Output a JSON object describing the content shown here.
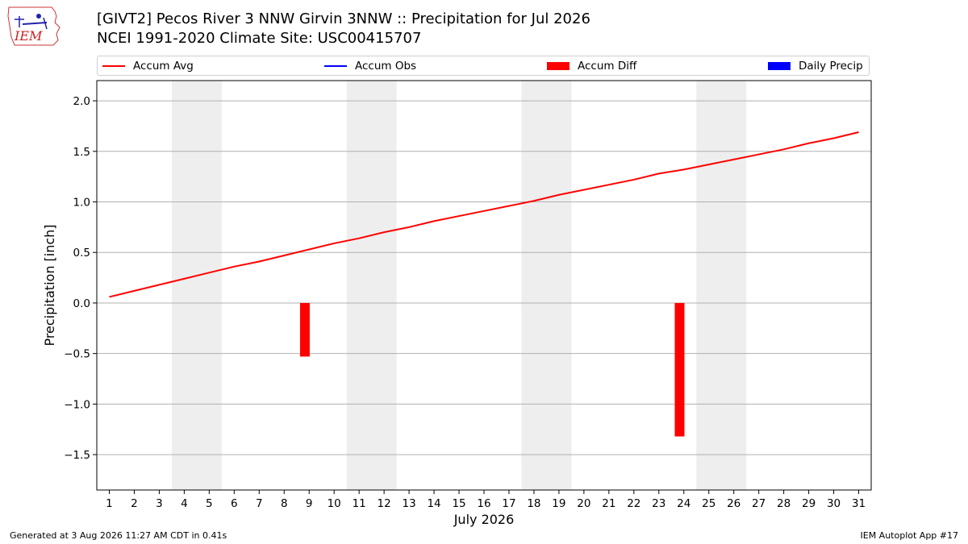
{
  "header": {
    "logo_text": "IEM",
    "title_line1": "[GIVT2] Pecos River 3 NNW Girvin 3NNW :: Precipitation for Jul 2026",
    "title_line2": "NCEI 1991-2020 Climate Site: USC00415707"
  },
  "footer": {
    "generated": "Generated at 3 Aug 2026 11:27 AM CDT in 0.41s",
    "app": "IEM Autoplot App #17"
  },
  "colors": {
    "accum_avg": "#ff0000",
    "accum_obs": "#0000ff",
    "accum_diff": "#ff0000",
    "daily_precip": "#0000ff",
    "weekend_shade": "#eeeeee",
    "grid": "#b0b0b0"
  },
  "chart_data": {
    "type": "line",
    "xlabel": "July 2026",
    "ylabel": "Precipitation [inch]",
    "ylim": [
      -1.85,
      2.2
    ],
    "xlim": [
      0.5,
      31.5
    ],
    "yticks": [
      -1.5,
      -1.0,
      -0.5,
      0.0,
      0.5,
      1.0,
      1.5,
      2.0
    ],
    "ytick_labels": [
      "−1.5",
      "−1.0",
      "−0.5",
      "0.0",
      "0.5",
      "1.0",
      "1.5",
      "2.0"
    ],
    "x": [
      1,
      2,
      3,
      4,
      5,
      6,
      7,
      8,
      9,
      10,
      11,
      12,
      13,
      14,
      15,
      16,
      17,
      18,
      19,
      20,
      21,
      22,
      23,
      24,
      25,
      26,
      27,
      28,
      29,
      30,
      31
    ],
    "x_tick_labels": [
      "1",
      "2",
      "3",
      "4",
      "5",
      "6",
      "7",
      "8",
      "9",
      "10",
      "11",
      "12",
      "13",
      "14",
      "15",
      "16",
      "17",
      "18",
      "19",
      "20",
      "21",
      "22",
      "23",
      "24",
      "25",
      "26",
      "27",
      "28",
      "29",
      "30",
      "31"
    ],
    "grid": "horizontal",
    "legend": {
      "placement": "top",
      "entries": [
        {
          "label": "Accum Avg",
          "kind": "line",
          "color": "#ff0000"
        },
        {
          "label": "Accum Obs",
          "kind": "line",
          "color": "#0000ff"
        },
        {
          "label": "Accum Diff",
          "kind": "patch",
          "color": "#ff0000"
        },
        {
          "label": "Daily Precip",
          "kind": "patch",
          "color": "#0000ff"
        }
      ]
    },
    "weekend_bands": [
      [
        3.5,
        5.5
      ],
      [
        10.5,
        12.5
      ],
      [
        17.5,
        19.5
      ],
      [
        24.5,
        26.5
      ]
    ],
    "series": [
      {
        "name": "Accum Avg",
        "color": "#ff0000",
        "values": [
          0.06,
          0.12,
          0.18,
          0.24,
          0.3,
          0.36,
          0.41,
          0.47,
          0.53,
          0.59,
          0.64,
          0.7,
          0.75,
          0.81,
          0.86,
          0.91,
          0.96,
          1.01,
          1.07,
          1.12,
          1.17,
          1.22,
          1.28,
          1.32,
          1.37,
          1.42,
          1.47,
          1.52,
          1.58,
          1.63,
          1.69
        ]
      }
    ],
    "bars": {
      "name": "Accum Diff",
      "color": "#ff0000",
      "points": [
        {
          "x": 8.83,
          "value": -0.53
        },
        {
          "x": 23.83,
          "value": -1.32
        }
      ]
    }
  }
}
